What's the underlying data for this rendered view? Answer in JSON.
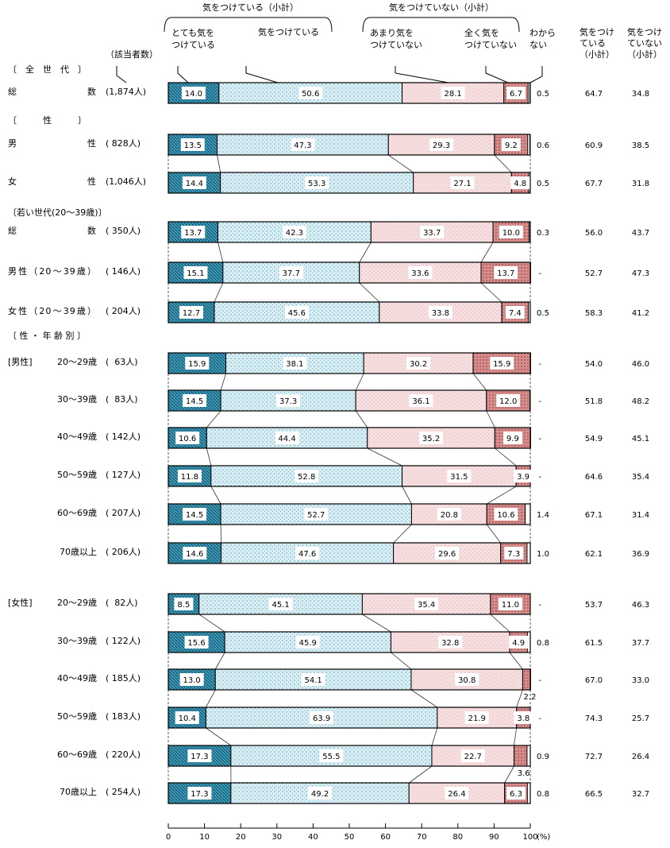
{
  "headers": {
    "group_aware": "気をつけている（小計）",
    "group_unaware": "気をつけていない（小計）",
    "cat1": "とても気を\nつけている",
    "cat2": "気をつけている",
    "cat3": "あまり気を\nつけていない",
    "cat4": "全く気を\nつけていない",
    "cat5": "わから\nない",
    "sub1": "気をつけ\nている\n（小計）",
    "sub2": "気をつけ\nていない\n（小計）",
    "n": "（該当者数）"
  },
  "sections": {
    "all": "〔　全　世　代　〕",
    "sex": "〔　　　性　　　〕",
    "young": "〔若い世代(20～39歳)〕",
    "sexage": "〔 性 ・ 年 齢 別 〕"
  },
  "chart_data": {
    "type": "bar",
    "stacked": true,
    "orientation": "horizontal",
    "xlabel": "(%)",
    "xlim": [
      0,
      100
    ],
    "xticks": [
      "0",
      "10",
      "20",
      "30",
      "40",
      "50",
      "60",
      "70",
      "80",
      "90",
      "100"
    ],
    "legend": [
      "とても気をつけている",
      "気をつけている",
      "あまり気をつけていない",
      "全く気をつけていない",
      "わからない"
    ],
    "colors": [
      "#3a9cbc",
      "#d6eef5",
      "#f8dede",
      "#d98c8c"
    ],
    "rows": [
      {
        "group": "",
        "label": "総数",
        "n": "(1,874人)",
        "values": [
          14.0,
          50.6,
          28.1,
          6.7
        ],
        "dk": "0.5",
        "sub1": "64.7",
        "sub2": "34.8"
      },
      {
        "group": "",
        "label": "男性",
        "n": "( 828人)",
        "values": [
          13.5,
          47.3,
          29.3,
          9.2
        ],
        "dk": "0.6",
        "sub1": "60.9",
        "sub2": "38.5"
      },
      {
        "group": "",
        "label": "女性",
        "n": "(1,046人)",
        "values": [
          14.4,
          53.3,
          27.1,
          4.8
        ],
        "dk": "0.5",
        "sub1": "67.7",
        "sub2": "31.8"
      },
      {
        "group": "",
        "label": "総数",
        "n": "( 350人)",
        "values": [
          13.7,
          42.3,
          33.7,
          10.0
        ],
        "dk": "0.3",
        "sub1": "56.0",
        "sub2": "43.7"
      },
      {
        "group": "",
        "label": "男性（20～39歳）",
        "n": "( 146人)",
        "values": [
          15.1,
          37.7,
          33.6,
          13.7
        ],
        "dk": "-",
        "sub1": "52.7",
        "sub2": "47.3"
      },
      {
        "group": "",
        "label": "女性（20～39歳）",
        "n": "( 204人)",
        "values": [
          12.7,
          45.6,
          33.8,
          7.4
        ],
        "dk": "0.5",
        "sub1": "58.3",
        "sub2": "41.2"
      },
      {
        "group": "[男性]",
        "label": "20～29歳",
        "n": "(  63人)",
        "values": [
          15.9,
          38.1,
          30.2,
          15.9
        ],
        "dk": "-",
        "sub1": "54.0",
        "sub2": "46.0"
      },
      {
        "group": "",
        "label": "30～39歳",
        "n": "(  83人)",
        "values": [
          14.5,
          37.3,
          36.1,
          12.0
        ],
        "dk": "-",
        "sub1": "51.8",
        "sub2": "48.2"
      },
      {
        "group": "",
        "label": "40～49歳",
        "n": "( 142人)",
        "values": [
          10.6,
          44.4,
          35.2,
          9.9
        ],
        "dk": "-",
        "sub1": "54.9",
        "sub2": "45.1"
      },
      {
        "group": "",
        "label": "50～59歳",
        "n": "( 127人)",
        "values": [
          11.8,
          52.8,
          31.5,
          3.9
        ],
        "dk": "-",
        "sub1": "64.6",
        "sub2": "35.4"
      },
      {
        "group": "",
        "label": "60～69歳",
        "n": "( 207人)",
        "values": [
          14.5,
          52.7,
          20.8,
          10.6
        ],
        "dk": "1.4",
        "sub1": "67.1",
        "sub2": "31.4"
      },
      {
        "group": "",
        "label": "70歳以上",
        "n": "( 206人)",
        "values": [
          14.6,
          47.6,
          29.6,
          7.3
        ],
        "dk": "1.0",
        "sub1": "62.1",
        "sub2": "36.9"
      },
      {
        "group": "[女性]",
        "label": "20～29歳",
        "n": "(  82人)",
        "values": [
          8.5,
          45.1,
          35.4,
          11.0
        ],
        "dk": "-",
        "sub1": "53.7",
        "sub2": "46.3"
      },
      {
        "group": "",
        "label": "30～39歳",
        "n": "( 122人)",
        "values": [
          15.6,
          45.9,
          32.8,
          4.9
        ],
        "dk": "0.8",
        "sub1": "61.5",
        "sub2": "37.7"
      },
      {
        "group": "",
        "label": "40～49歳",
        "n": "( 185人)",
        "values": [
          13.0,
          54.1,
          30.8,
          2.2
        ],
        "dk": "-",
        "sub1": "67.0",
        "sub2": "33.0"
      },
      {
        "group": "",
        "label": "50～59歳",
        "n": "( 183人)",
        "values": [
          10.4,
          63.9,
          21.9,
          3.8
        ],
        "dk": "-",
        "sub1": "74.3",
        "sub2": "25.7"
      },
      {
        "group": "",
        "label": "60～69歳",
        "n": "( 220人)",
        "values": [
          17.3,
          55.5,
          22.7,
          3.6
        ],
        "dk": "0.9",
        "sub1": "72.7",
        "sub2": "26.4"
      },
      {
        "group": "",
        "label": "70歳以上",
        "n": "( 254人)",
        "values": [
          17.3,
          49.2,
          26.4,
          6.3
        ],
        "dk": "0.8",
        "sub1": "66.5",
        "sub2": "32.7"
      }
    ]
  }
}
